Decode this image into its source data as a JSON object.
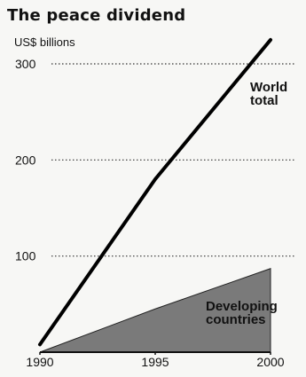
{
  "chart_data": {
    "type": "area",
    "title": "The peace dividend",
    "ylabel": "US$ billions",
    "xlabel": "",
    "x_ticks": [
      1990,
      1995,
      2000
    ],
    "y_ticks": [
      100,
      200,
      300
    ],
    "xlim": [
      1990,
      2000
    ],
    "ylim": [
      0,
      300
    ],
    "grid": "horizontal dotted",
    "series": [
      {
        "name": "World total",
        "label_lines": [
          "World",
          "total"
        ],
        "style": "line",
        "color": "#000000",
        "x": [
          1990,
          1995,
          2000
        ],
        "y": [
          8,
          180,
          325
        ]
      },
      {
        "name": "Developing countries",
        "label_lines": [
          "Developing",
          "countries"
        ],
        "style": "area",
        "color": "#7a7a7a",
        "x": [
          1990,
          1995,
          2000
        ],
        "y": [
          0,
          45,
          87
        ]
      }
    ]
  }
}
